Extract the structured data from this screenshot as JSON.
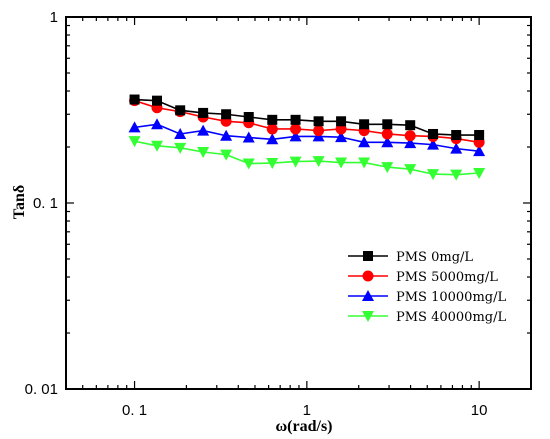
{
  "chart_data": {
    "type": "line",
    "xscale": "log",
    "yscale": "log",
    "xlabel": "ω(rad/s)",
    "ylabel": "Tanδ",
    "xlim": [
      0.04,
      20
    ],
    "ylim": [
      0.01,
      1
    ],
    "xticks": [
      0.1,
      1,
      10
    ],
    "xtick_labels": [
      "0. 1",
      "1",
      "10"
    ],
    "yticks": [
      0.01,
      0.1,
      1
    ],
    "ytick_labels": [
      "0. 01",
      "0. 1",
      "1"
    ],
    "grid": false,
    "legend_position": "lower-right",
    "x": [
      0.1,
      0.135,
      0.184,
      0.25,
      0.34,
      0.46,
      0.63,
      0.86,
      1.17,
      1.58,
      2.15,
      2.93,
      3.98,
      5.4,
      7.36,
      10
    ],
    "series": [
      {
        "name": "PMS 0mg/L",
        "color": "#000000",
        "marker": "square",
        "values": [
          0.36,
          0.355,
          0.315,
          0.305,
          0.3,
          0.29,
          0.28,
          0.28,
          0.275,
          0.275,
          0.265,
          0.265,
          0.262,
          0.235,
          0.232,
          0.232
        ]
      },
      {
        "name": "PMS 5000mg/L",
        "color": "#ff0000",
        "marker": "circle",
        "values": [
          0.355,
          0.325,
          0.31,
          0.29,
          0.275,
          0.27,
          0.25,
          0.25,
          0.245,
          0.25,
          0.245,
          0.235,
          0.23,
          0.228,
          0.222,
          0.212
        ]
      },
      {
        "name": "PMS 10000mg/L",
        "color": "#0000ff",
        "marker": "triangle-up",
        "values": [
          0.255,
          0.265,
          0.235,
          0.245,
          0.23,
          0.225,
          0.22,
          0.228,
          0.228,
          0.226,
          0.212,
          0.212,
          0.21,
          0.206,
          0.196,
          0.19
        ]
      },
      {
        "name": "PMS 40000mg/L",
        "color": "#33ff33",
        "marker": "triangle-down",
        "values": [
          0.215,
          0.203,
          0.198,
          0.188,
          0.182,
          0.163,
          0.164,
          0.167,
          0.168,
          0.165,
          0.165,
          0.156,
          0.152,
          0.143,
          0.142,
          0.145
        ]
      }
    ]
  }
}
